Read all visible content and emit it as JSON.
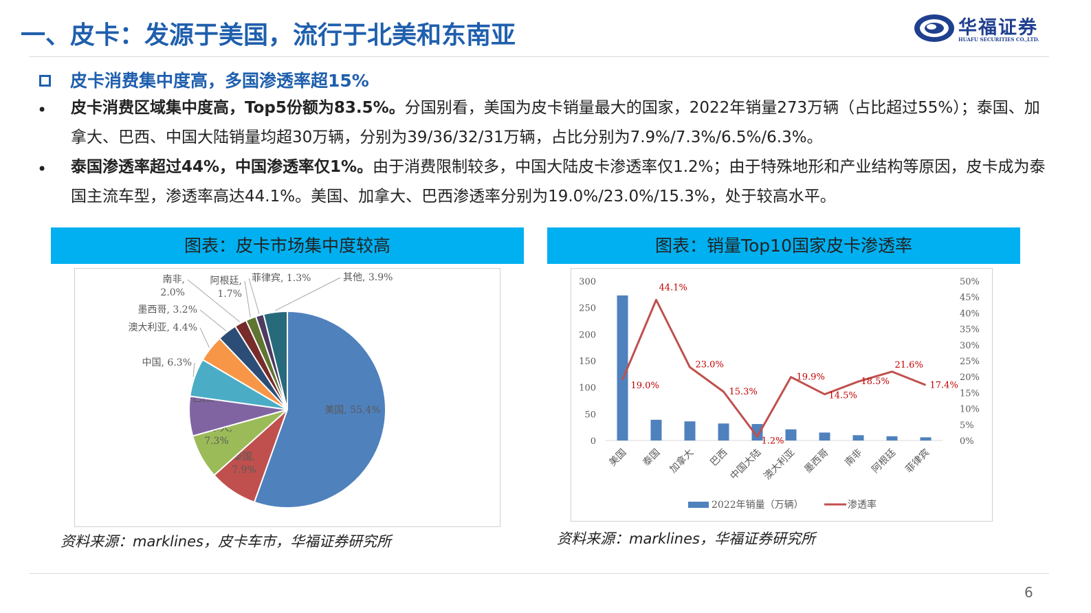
{
  "header": {
    "title": "一、皮卡：发源于美国，流行于北美和东南亚",
    "logo_cn": "华福证券",
    "logo_en": "HUAFU SECURITIES CO.,LTD."
  },
  "subtitle": "皮卡消费集中度高，多国渗透率超15%",
  "bullets": [
    {
      "bold": "皮卡消费区域集中度高，Top5份额为83.5%。",
      "text": "分国别看，美国为皮卡销量最大的国家，2022年销量273万辆（占比超过55%）；泰国、加拿大、巴西、中国大陆销量均超30万辆，分别为39/36/32/31万辆，占比分别为7.9%/7.3%/6.5%/6.3%。"
    },
    {
      "bold": "泰国渗透率超过44%，中国渗透率仅1%。",
      "text": "由于消费限制较多，中国大陆皮卡渗透率仅1.2%；由于特殊地形和产业结构等原因，皮卡成为泰国主流车型，渗透率高达44.1%。美国、加拿大、巴西渗透率分别为19.0%/23.0%/15.3%，处于较高水平。"
    }
  ],
  "panel_left": {
    "banner": "图表：皮卡市场集中度较高",
    "source": "资料来源：marklines，皮卡车市，华福证券研究所"
  },
  "panel_right": {
    "banner": "图表：销量Top10国家皮卡渗透率",
    "source": "资料来源：marklines，华福证券研究所"
  },
  "page_number": "6",
  "chart_data": [
    {
      "type": "pie",
      "categories": [
        "美国",
        "泰国",
        "加拿大",
        "巴西",
        "中国",
        "澳大利亚",
        "墨西哥",
        "南非",
        "阿根廷",
        "菲律宾",
        "其他"
      ],
      "values": [
        55.4,
        7.9,
        7.3,
        6.5,
        6.3,
        4.4,
        3.2,
        2.0,
        1.7,
        1.3,
        3.9
      ],
      "colors": [
        "#4f81bd",
        "#c0504d",
        "#9bbb59",
        "#8064a2",
        "#4bacc6",
        "#f79646",
        "#2c4d75",
        "#772c2a",
        "#5f7530",
        "#4d3b62",
        "#276a7c"
      ],
      "labels": [
        [
          "美国, 55.4%"
        ],
        [
          "泰国,",
          "7.9%"
        ],
        [
          "加拿大,",
          "7.3%"
        ],
        [
          "巴西, 6.5%"
        ],
        [
          "中国, 6.3%"
        ],
        [
          "澳大利亚, 4.4%"
        ],
        [
          "墨西哥, 3.2%"
        ],
        [
          "南非,",
          "2.0%"
        ],
        [
          "阿根廷,",
          "1.7%"
        ],
        [
          "菲律宾, 1.3%"
        ],
        [
          "其他, 3.9%"
        ]
      ]
    },
    {
      "type": "bar+line",
      "categories": [
        "美国",
        "泰国",
        "加拿大",
        "巴西",
        "中国大陆",
        "澳大利亚",
        "墨西哥",
        "南非",
        "阿根廷",
        "菲律宾"
      ],
      "series": [
        {
          "name": "2022年销量（万辆）",
          "type": "bar",
          "axis": "left",
          "color": "#4f81bd",
          "values": [
            273,
            39,
            36,
            32,
            31,
            21,
            15,
            10,
            8,
            6
          ]
        },
        {
          "name": "渗透率",
          "type": "line",
          "axis": "right",
          "color": "#c0504d",
          "values": [
            19.0,
            44.1,
            23.0,
            15.3,
            1.2,
            19.9,
            14.5,
            18.5,
            21.6,
            17.4
          ],
          "labels": [
            "19.0%",
            "44.1%",
            "23.0%",
            "15.3%",
            "1.2%",
            "19.9%",
            "14.5%",
            "18.5%",
            "21.6%",
            "17.4%"
          ]
        }
      ],
      "ylim_left": [
        0,
        300
      ],
      "ylim_right": [
        0,
        50
      ],
      "yticks_left": [
        "0",
        "50",
        "100",
        "150",
        "200",
        "250",
        "300"
      ],
      "yticks_right": [
        "0%",
        "5%",
        "10%",
        "15%",
        "20%",
        "25%",
        "30%",
        "35%",
        "40%",
        "45%",
        "50%"
      ],
      "legend_position": "bottom",
      "grid": false
    }
  ]
}
